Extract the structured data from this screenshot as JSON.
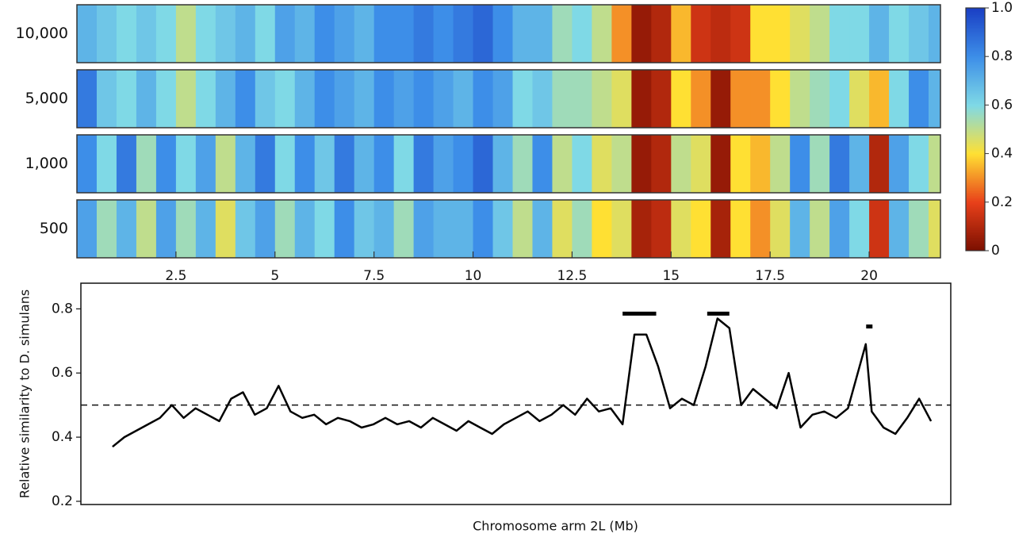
{
  "chart_data": [
    {
      "type": "heatmap",
      "rows": [
        {
          "name": "10,000",
          "values": [
            0.7,
            0.65,
            0.6,
            0.65,
            0.6,
            0.5,
            0.6,
            0.65,
            0.7,
            0.6,
            0.75,
            0.7,
            0.8,
            0.75,
            0.7,
            0.8,
            0.8,
            0.85,
            0.8,
            0.85,
            0.9,
            0.8,
            0.7,
            0.7,
            0.55,
            0.6,
            0.5,
            0.3,
            0.05,
            0.1,
            0.35,
            0.15,
            0.12,
            0.15,
            0.4,
            0.4,
            0.45,
            0.5,
            0.6,
            0.6,
            0.7,
            0.6,
            0.65,
            0.7
          ]
        },
        {
          "name": "5,000",
          "values": [
            0.85,
            0.65,
            0.6,
            0.7,
            0.6,
            0.5,
            0.6,
            0.7,
            0.8,
            0.65,
            0.6,
            0.7,
            0.8,
            0.75,
            0.7,
            0.8,
            0.75,
            0.8,
            0.75,
            0.7,
            0.8,
            0.75,
            0.6,
            0.65,
            0.55,
            0.55,
            0.5,
            0.45,
            0.05,
            0.1,
            0.4,
            0.3,
            0.05,
            0.3,
            0.3,
            0.4,
            0.5,
            0.55,
            0.6,
            0.45,
            0.35,
            0.6,
            0.8,
            0.7
          ]
        },
        {
          "name": "1,000",
          "values": [
            0.8,
            0.6,
            0.85,
            0.55,
            0.8,
            0.6,
            0.75,
            0.5,
            0.7,
            0.85,
            0.6,
            0.8,
            0.65,
            0.85,
            0.7,
            0.8,
            0.6,
            0.85,
            0.75,
            0.8,
            0.9,
            0.7,
            0.55,
            0.8,
            0.5,
            0.6,
            0.45,
            0.5,
            0.05,
            0.1,
            0.5,
            0.45,
            0.05,
            0.4,
            0.35,
            0.5,
            0.8,
            0.55,
            0.85,
            0.7,
            0.1,
            0.75,
            0.6,
            0.5
          ]
        },
        {
          "name": "500",
          "values": [
            0.75,
            0.55,
            0.7,
            0.5,
            0.75,
            0.55,
            0.7,
            0.45,
            0.65,
            0.75,
            0.55,
            0.7,
            0.6,
            0.8,
            0.65,
            0.7,
            0.55,
            0.75,
            0.7,
            0.7,
            0.8,
            0.65,
            0.5,
            0.7,
            0.45,
            0.55,
            0.4,
            0.45,
            0.08,
            0.12,
            0.45,
            0.4,
            0.08,
            0.4,
            0.3,
            0.45,
            0.7,
            0.5,
            0.75,
            0.6,
            0.15,
            0.7,
            0.55,
            0.45
          ]
        }
      ],
      "bins": [
        0,
        0.5,
        1,
        1.5,
        2,
        2.5,
        3,
        3.5,
        4,
        4.5,
        5,
        5.5,
        6,
        6.5,
        7,
        7.5,
        8,
        8.5,
        9,
        9.5,
        10,
        10.5,
        11,
        11.5,
        12,
        12.5,
        13,
        13.5,
        14,
        14.5,
        15,
        15.5,
        16,
        16.5,
        17,
        17.5,
        18,
        18.5,
        19,
        19.5,
        20,
        20.5,
        21,
        21.5,
        21.8
      ],
      "xlim": [
        0,
        21.8
      ],
      "xticks": [
        2.5,
        5,
        7.5,
        10,
        12.5,
        15,
        17.5,
        20
      ],
      "colorbar": {
        "lim": [
          0,
          1
        ],
        "ticks": [
          0,
          0.2,
          0.4,
          0.6,
          0.8,
          {
            "value": 1,
            "label": "1.0"
          }
        ],
        "colors": [
          "#7a0f00",
          "#e8401a",
          "#ffe033",
          "#7fd9e6",
          "#3d8ee8",
          "#1a3fc4"
        ]
      }
    },
    {
      "type": "line",
      "ylabel": "Relative similarity to D. simulans",
      "xlabel": "Chromosome arm 2L (Mb)",
      "x": [
        0.9,
        1.2,
        1.5,
        1.8,
        2.1,
        2.4,
        2.7,
        3.0,
        3.3,
        3.6,
        3.9,
        4.2,
        4.5,
        4.8,
        5.1,
        5.4,
        5.7,
        6.0,
        6.3,
        6.6,
        6.9,
        7.2,
        7.5,
        7.8,
        8.1,
        8.4,
        8.7,
        9.0,
        9.3,
        9.6,
        9.9,
        10.2,
        10.5,
        10.8,
        11.1,
        11.4,
        11.7,
        12.0,
        12.3,
        12.6,
        12.9,
        13.2,
        13.5,
        13.8,
        14.1,
        14.4,
        14.7,
        15.0,
        15.3,
        15.6,
        15.9,
        16.2,
        16.5,
        16.8,
        17.1,
        17.4,
        17.7,
        18.0,
        18.3,
        18.6,
        18.9,
        19.2,
        19.5,
        19.95,
        20.1,
        20.4,
        20.7,
        21.0,
        21.3,
        21.6
      ],
      "values": [
        0.37,
        0.4,
        0.42,
        0.44,
        0.46,
        0.5,
        0.46,
        0.49,
        0.47,
        0.45,
        0.52,
        0.54,
        0.47,
        0.49,
        0.56,
        0.48,
        0.46,
        0.47,
        0.44,
        0.46,
        0.45,
        0.43,
        0.44,
        0.46,
        0.44,
        0.45,
        0.43,
        0.46,
        0.44,
        0.42,
        0.45,
        0.43,
        0.41,
        0.44,
        0.46,
        0.48,
        0.45,
        0.47,
        0.5,
        0.47,
        0.52,
        0.48,
        0.49,
        0.44,
        0.72,
        0.72,
        0.62,
        0.49,
        0.52,
        0.5,
        0.62,
        0.77,
        0.74,
        0.5,
        0.55,
        0.52,
        0.49,
        0.6,
        0.43,
        0.47,
        0.48,
        0.46,
        0.49,
        0.69,
        0.48,
        0.43,
        0.41,
        0.46,
        0.52,
        0.45
      ],
      "color": "#000000",
      "xlim": [
        0.1,
        22.1
      ],
      "ylim": [
        0.19,
        0.88
      ],
      "yticks": [
        0.2,
        0.4,
        0.6,
        0.8
      ],
      "reference_line": 0.5,
      "highlights": [
        {
          "x": [
            13.8,
            14.65
          ],
          "y": 0.785
        },
        {
          "x": [
            15.94,
            16.5
          ],
          "y": 0.785
        },
        {
          "x": [
            19.96,
            20.12
          ],
          "y": 0.745
        }
      ]
    }
  ]
}
